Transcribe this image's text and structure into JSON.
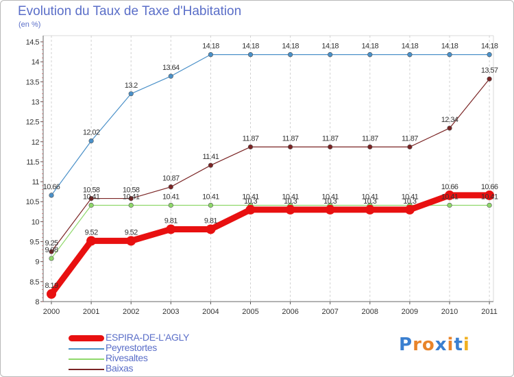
{
  "header": {
    "title": "Evolution du Taux de Taxe d'Habitation",
    "subtitle": "(en %)"
  },
  "logo": {
    "text": "Proxiti",
    "letter_colors": [
      "#3a7fd0",
      "#e8842a",
      "#e8842a",
      "#3a7fd0",
      "#e8842a",
      "#3a7fd0",
      "#f0b020"
    ]
  },
  "chart_data": {
    "type": "line",
    "title": "Evolution du Taux de Taxe d'Habitation",
    "subtitle": "(en %)",
    "xlabel": "",
    "ylabel": "",
    "x": [
      "2000",
      "2001",
      "2002",
      "2003",
      "2004",
      "2005",
      "2006",
      "2007",
      "2008",
      "2009",
      "2010",
      "2011"
    ],
    "ylim": [
      8,
      14.5
    ],
    "yticks": [
      "8",
      "8.5",
      "9",
      "9.5",
      "10",
      "10.5",
      "11",
      "11.5",
      "12",
      "12.5",
      "13",
      "13.5",
      "14",
      "14.5"
    ],
    "grid": "vertical dashed",
    "legend_position": "bottom-left",
    "series": [
      {
        "name": "Baixas",
        "color": "#7a2424",
        "labels": [
          "9.25",
          "10.58",
          "10.58",
          "10.87",
          "11.41",
          "11.87",
          "11.87",
          "11.87",
          "11.87",
          "11.87",
          "12.34",
          "13.57"
        ],
        "values": [
          9.25,
          10.58,
          10.58,
          10.87,
          11.41,
          11.87,
          11.87,
          11.87,
          11.87,
          11.87,
          12.34,
          13.57
        ]
      },
      {
        "name": "Rivesaltes",
        "color": "#8ed86a",
        "labels": [
          "9.08",
          "10.41",
          "10.41",
          "10.41",
          "10.41",
          "10.41",
          "10.41",
          "10.41",
          "10.41",
          "10.41",
          "10.41",
          "10.41"
        ],
        "values": [
          9.08,
          10.41,
          10.41,
          10.41,
          10.41,
          10.41,
          10.41,
          10.41,
          10.41,
          10.41,
          10.41,
          10.41
        ]
      },
      {
        "name": "Peyrestortes",
        "color": "#4a90c8",
        "labels": [
          "10.66",
          "12.02",
          "13.2",
          "13.64",
          "14.18",
          "14.18",
          "14.18",
          "14.18",
          "14.18",
          "14.18",
          "14.18",
          "14.18"
        ],
        "values": [
          10.66,
          12.02,
          13.2,
          13.64,
          14.18,
          14.18,
          14.18,
          14.18,
          14.18,
          14.18,
          14.18,
          14.18
        ]
      },
      {
        "name": "ESPIRA-DE-L'AGLY",
        "color": "#e81010",
        "labels": [
          "8.19",
          "9.52",
          "9.52",
          "9.81",
          "9.81",
          "10.3",
          "10.3",
          "10.3",
          "10.3",
          "10.3",
          "10.66",
          "10.66"
        ],
        "values": [
          8.19,
          9.52,
          9.52,
          9.81,
          9.81,
          10.3,
          10.3,
          10.3,
          10.3,
          10.3,
          10.66,
          10.66
        ]
      }
    ]
  },
  "legend": {
    "items": [
      {
        "label": "ESPIRA-DE-L'AGLY",
        "color": "#e81010"
      },
      {
        "label": "Peyrestortes",
        "color": "#4a90c8"
      },
      {
        "label": "Rivesaltes",
        "color": "#8ed86a"
      },
      {
        "label": "Baixas",
        "color": "#7a2424"
      }
    ]
  }
}
